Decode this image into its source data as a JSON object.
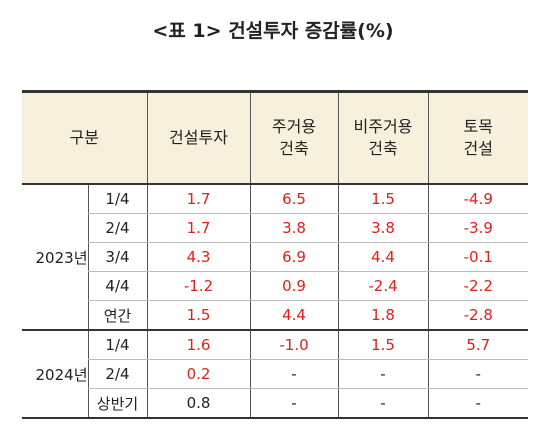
{
  "title": "<표 1> 건설투자 증감률(%)",
  "table": {
    "header": [
      "구분",
      "건설투자",
      "주거용\n건축",
      "비주거용\n건축",
      "토목\n건설"
    ],
    "groups": [
      {
        "label": "2023년",
        "rows": [
          {
            "period": "1/4",
            "values": [
              "1.7",
              "6.5",
              "1.5",
              "-4.9"
            ],
            "red": [
              true,
              true,
              true,
              true
            ]
          },
          {
            "period": "2/4",
            "values": [
              "1.7",
              "3.8",
              "3.8",
              "-3.9"
            ],
            "red": [
              true,
              true,
              true,
              true
            ]
          },
          {
            "period": "3/4",
            "values": [
              "4.3",
              "6.9",
              "4.4",
              "-0.1"
            ],
            "red": [
              true,
              true,
              true,
              true
            ]
          },
          {
            "period": "4/4",
            "values": [
              "-1.2",
              "0.9",
              "-2.4",
              "-2.2"
            ],
            "red": [
              true,
              true,
              true,
              true
            ]
          },
          {
            "period": "연간",
            "values": [
              "1.5",
              "4.4",
              "1.8",
              "-2.8"
            ],
            "red": [
              true,
              true,
              true,
              true
            ]
          }
        ]
      },
      {
        "label": "2024년",
        "rows": [
          {
            "period": "1/4",
            "values": [
              "1.6",
              "-1.0",
              "1.5",
              "5.7"
            ],
            "red": [
              true,
              true,
              true,
              true
            ]
          },
          {
            "period": "2/4",
            "values": [
              "0.2",
              "-",
              "-",
              "-"
            ],
            "red": [
              true,
              false,
              false,
              false
            ]
          },
          {
            "period": "상반기",
            "values": [
              "0.8",
              "-",
              "-",
              "-"
            ],
            "red": [
              false,
              false,
              false,
              false
            ]
          }
        ]
      }
    ]
  }
}
